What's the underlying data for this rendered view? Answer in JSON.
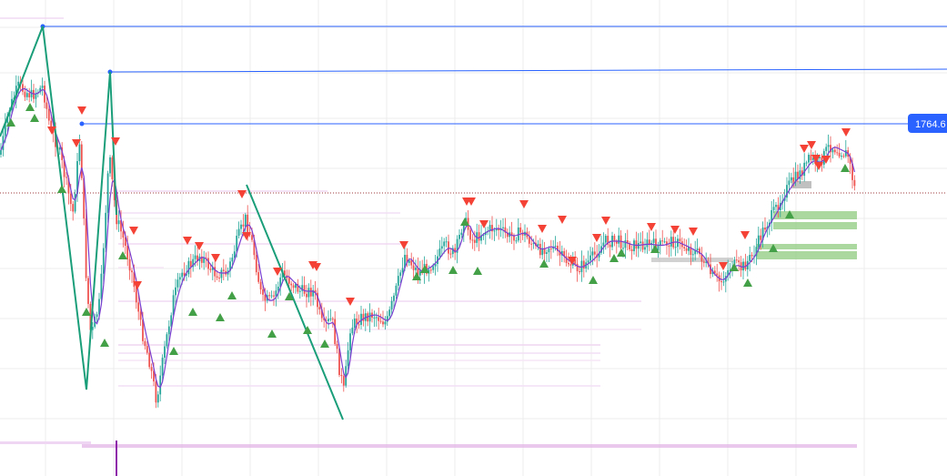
{
  "chart_data": {
    "type": "candlestick",
    "price_label": "1764.6",
    "current_price": 1764.6,
    "colors": {
      "up": "#26a69a",
      "down": "#ef5350",
      "ma_line": "#7b3fd0",
      "zigzag": "#1a9e7a",
      "level_line": "#2962ff",
      "price_tag_bg": "#2962ff",
      "buy_marker": "#43a047",
      "sell_marker": "#f44336",
      "volume_profile": "#e1b0e6",
      "support_zone": "#8fcb7e",
      "grid": "#ececec",
      "dotted_price_line": "#9e3a3a"
    },
    "y_range_price": [
      1650,
      1800
    ],
    "horizontal_levels": [
      {
        "name": "swing-high-1",
        "price": 1789
      },
      {
        "name": "swing-high-2",
        "price": 1781
      },
      {
        "name": "swing-high-3",
        "price": 1764.6
      }
    ],
    "grid": true,
    "volume_visible": true
  },
  "icons": {
    "buy_marker": "triangle-up-icon",
    "sell_marker": "triangle-down-icon"
  }
}
